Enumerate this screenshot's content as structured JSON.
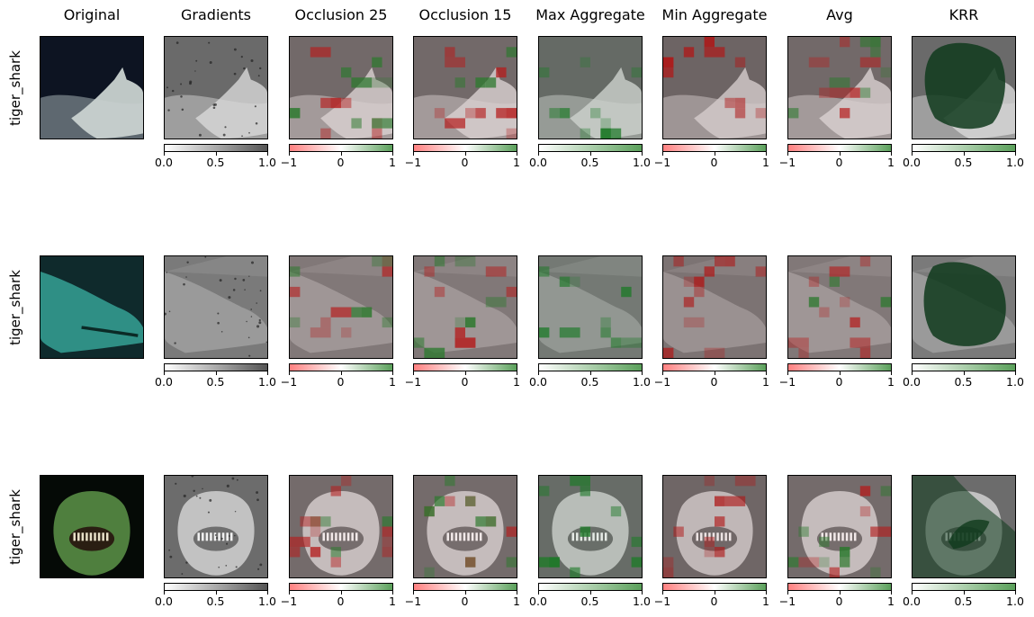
{
  "columns": [
    "Original",
    "Gradients",
    "Occlusion 25",
    "Occlusion 15",
    "Max Aggregate",
    "Min Aggregate",
    "Avg",
    "KRR"
  ],
  "rows": [
    {
      "label": "tiger_shark",
      "scene": "shark-side-view-dark-sea"
    },
    {
      "label": "tiger_shark",
      "scene": "shark-close-up-teal"
    },
    {
      "label": "tiger_shark",
      "scene": "shark-front-mouth-green"
    }
  ],
  "colorbars": [
    {
      "type": "gray",
      "ticks": [
        "0.0",
        "0.5",
        "1.0"
      ]
    },
    {
      "type": "diverging",
      "ticks": [
        "−1",
        "0",
        "1"
      ]
    },
    {
      "type": "diverging",
      "ticks": [
        "−1",
        "0",
        "1"
      ]
    },
    {
      "type": "green",
      "ticks": [
        "0.0",
        "0.5",
        "1.0"
      ]
    },
    {
      "type": "diverging",
      "ticks": [
        "−1",
        "0",
        "1"
      ]
    },
    {
      "type": "diverging",
      "ticks": [
        "−1",
        "0",
        "1"
      ]
    },
    {
      "type": "green",
      "ticks": [
        "0.0",
        "0.5",
        "1.0"
      ]
    }
  ],
  "colors": {
    "gray_low": "#ffffff",
    "gray_high": "#555555",
    "neg": "#ff8080",
    "pos": "#5aa05a",
    "red_patch": "#b01818",
    "green_patch": "#1f7a2a",
    "krr_mask": "#0f3a1c"
  }
}
